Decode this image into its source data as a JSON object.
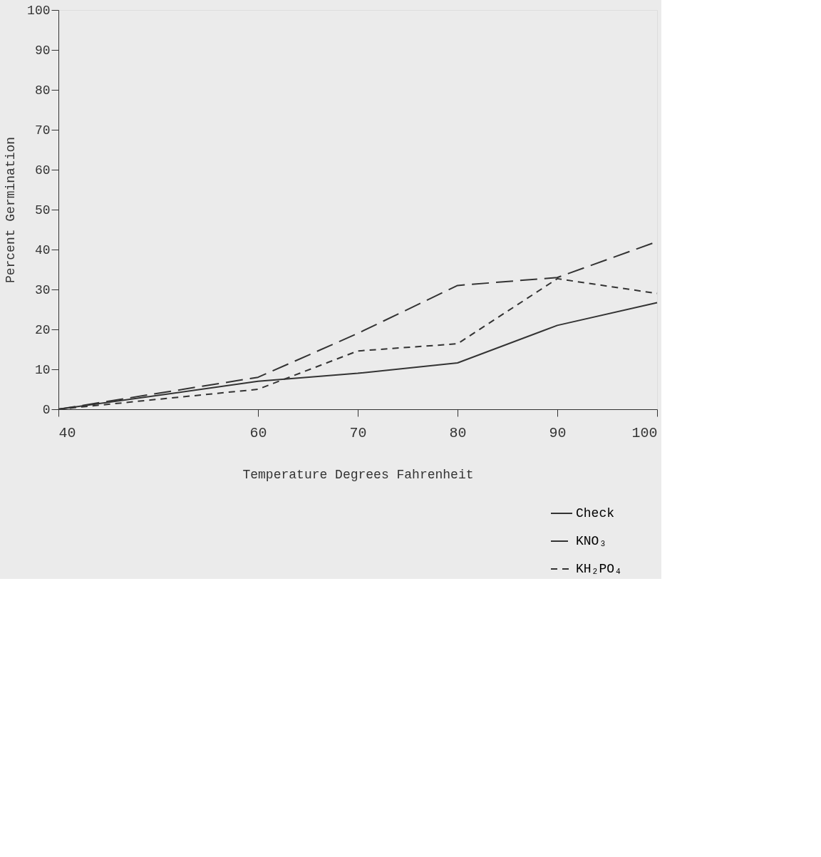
{
  "chart_data": {
    "type": "line",
    "xlabel": "Temperature Degrees Fahrenheit",
    "ylabel": "Percent Germination",
    "x": [
      40,
      60,
      70,
      80,
      90,
      100
    ],
    "series": [
      {
        "name": "Check",
        "color": "#333333",
        "line_style": "solid",
        "values": [
          0,
          7,
          9,
          11.6,
          21,
          26.7
        ]
      },
      {
        "name": "KNO₃",
        "color": "#333333",
        "line_style": "dashed",
        "values": [
          0,
          8,
          19,
          31,
          33,
          42
        ]
      },
      {
        "name": "KH₂PO₄",
        "color": "#333333",
        "line_style": "dotted",
        "values": [
          0,
          5,
          14.6,
          16.4,
          32.7,
          29
        ]
      }
    ],
    "xlim": [
      40,
      100
    ],
    "xticks": [
      40,
      60,
      70,
      80,
      90,
      100
    ],
    "ylim": [
      0,
      100
    ],
    "yticks": [
      0,
      10,
      20,
      30,
      40,
      50,
      60,
      70,
      80,
      90,
      100
    ],
    "grid": false,
    "legend": "bottom right",
    "marker": "none"
  }
}
